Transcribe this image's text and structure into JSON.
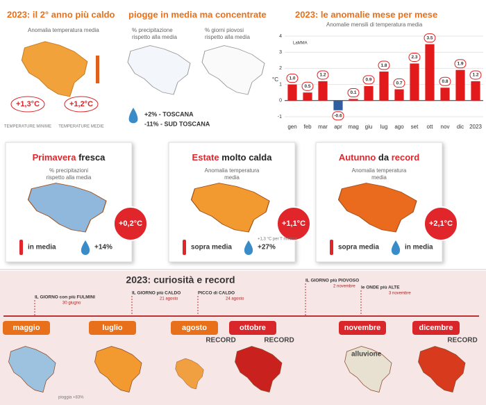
{
  "top": {
    "title": "2023: il 2° anno più caldo",
    "subtitle": "Anomalia temperatura media",
    "badges": [
      {
        "value": "+1,3°C",
        "label": "TEMPERATURE MINIME"
      },
      {
        "value": "+1,2°C",
        "label": "TEMPERATURE MEDIE"
      }
    ]
  },
  "rain": {
    "title": "piogge in media ma concentrate",
    "map1": [
      "% precipitazione",
      "rispetto alla media"
    ],
    "map2": [
      "% giorni piovosi",
      "rispetto alla media"
    ],
    "lines": [
      "+2% - TOSCANA",
      "-11% - SUD TOSCANA"
    ]
  },
  "chart_logo": "LaMMA",
  "chart_data": {
    "type": "bar",
    "title": "2023: le anomalie mese per mese",
    "subtitle": "Anomalie mensili di temperatura media",
    "ylabel": "°C",
    "categories": [
      "gen",
      "feb",
      "mar",
      "apr",
      "mag",
      "giu",
      "lug",
      "ago",
      "set",
      "ott",
      "nov",
      "dic",
      "2023"
    ],
    "values": [
      1.0,
      0.5,
      1.2,
      -0.6,
      0.1,
      0.9,
      1.8,
      0.7,
      2.3,
      3.5,
      0.8,
      1.9,
      1.2
    ],
    "value_labels": [
      "1.0",
      "0.5",
      "1.2",
      "-0.6",
      "0.1",
      "0.9",
      "1.8",
      "0.7",
      "2.3",
      "3.5",
      "0.8",
      "1.9",
      "1.2"
    ],
    "color": "#e31a1c",
    "negative_color": "#2f5fa0",
    "ylim": [
      -1,
      4
    ],
    "yticks": [
      -1,
      0,
      1,
      2,
      3,
      4
    ],
    "grid": true
  },
  "seasons": [
    {
      "title": [
        "Primavera",
        "fresca"
      ],
      "subtitle": [
        "% precipitazioni",
        "rispetto alla media"
      ],
      "anomaly": "+0,2°C",
      "temp": "in media",
      "rain": "+14%"
    },
    {
      "title": [
        "Estate",
        "molto calda"
      ],
      "subtitle": [
        "Anomalia temperatura",
        "media"
      ],
      "anomaly": "+1,1°C",
      "temp": "sopra media",
      "rain": "+27%",
      "note": "+1,3 °C per T minima"
    },
    {
      "title": [
        "Autunno",
        "da",
        "record"
      ],
      "subtitle": [
        "Anomalia temperatura",
        "media"
      ],
      "anomaly": "+2,1°C",
      "temp": "sopra media",
      "rain": "in media"
    }
  ],
  "records": {
    "title": "2023: curiosità e record",
    "events": [
      {
        "name": "IL GIORNO con più FULMINI",
        "date": "30 giugno"
      },
      {
        "name": "IL GIORNO più CALDO",
        "date": "21 agosto"
      },
      {
        "name": "PICCO di CALDO",
        "date": "24 agosto"
      },
      {
        "name": "IL GIORNO più PIOVOSO",
        "date": "2 novembre"
      },
      {
        "name": "le ONDE più ALTE",
        "date": "3 novembre"
      }
    ],
    "months": [
      {
        "name": "maggio",
        "note": "pioggia +83%"
      },
      {
        "name": "luglio"
      },
      {
        "name": "agosto",
        "note": "RECORD"
      },
      {
        "name": "ottobre",
        "note": "RECORD"
      },
      {
        "name": "novembre",
        "note": "alluvione"
      },
      {
        "name": "dicembre",
        "note": "RECORD"
      }
    ]
  }
}
